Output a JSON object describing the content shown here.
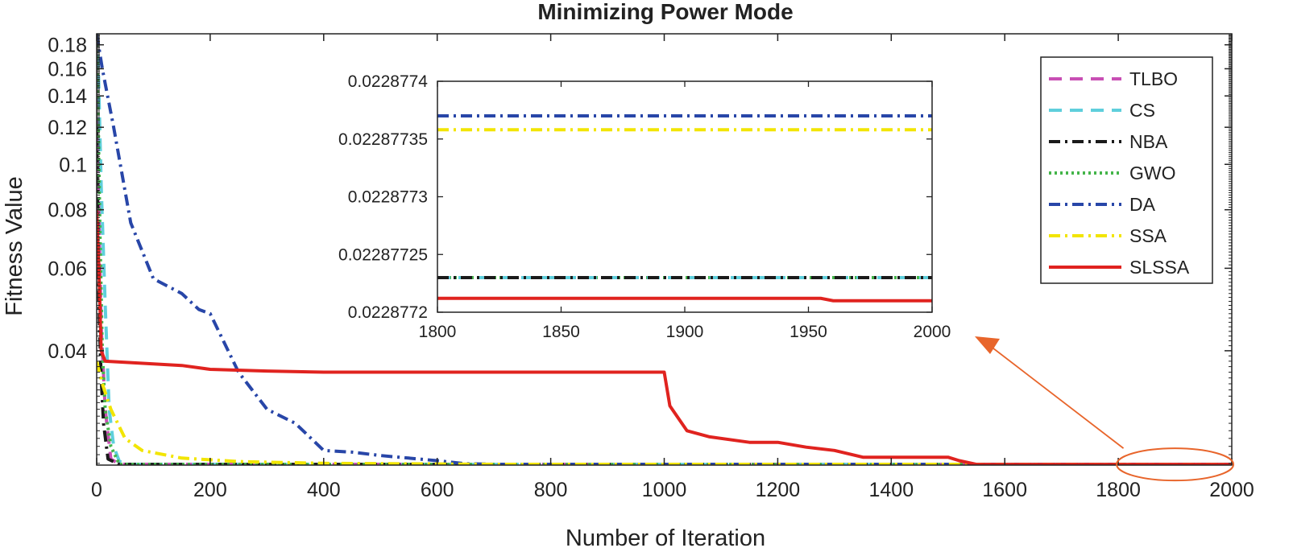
{
  "chart_data": [
    {
      "id": "main",
      "type": "line",
      "title": "Minimizing Power Mode",
      "xlabel": "Number of Iteration",
      "ylabel": "Fitness Value",
      "yscale": "log",
      "xlim": [
        0,
        2000
      ],
      "ylim": [
        0.0228,
        0.19
      ],
      "xticks": [
        "0",
        "200",
        "400",
        "600",
        "800",
        "1000",
        "1200",
        "1400",
        "1600",
        "1800",
        "2000"
      ],
      "yticks": [
        {
          "value": 0.04,
          "label": "0.04"
        },
        {
          "value": 0.06,
          "label": "0.06"
        },
        {
          "value": 0.08,
          "label": "0.08"
        },
        {
          "value": 0.1,
          "label": "0.1"
        },
        {
          "value": 0.12,
          "label": "0.12"
        },
        {
          "value": 0.14,
          "label": "0.14"
        },
        {
          "value": 0.16,
          "label": "0.16"
        },
        {
          "value": 0.18,
          "label": "0.18"
        }
      ],
      "legend_position": "top-right",
      "grid": false,
      "series": [
        {
          "name": "TLBO",
          "color": "#c84fb4",
          "dash": "dashed",
          "x": [
            0,
            3,
            8,
            15,
            25,
            40,
            2000
          ],
          "y": [
            0.19,
            0.09,
            0.045,
            0.03,
            0.0235,
            0.02289,
            0.0228772
          ]
        },
        {
          "name": "CS",
          "color": "#5fcfdc",
          "dash": "dashed",
          "x": [
            0,
            3,
            8,
            15,
            22,
            30,
            40,
            60,
            2000
          ],
          "y": [
            0.19,
            0.16,
            0.09,
            0.05,
            0.03,
            0.025,
            0.0232,
            0.02288,
            0.0228772
          ]
        },
        {
          "name": "NBA",
          "color": "#1a1a1a",
          "dash": "dashdot",
          "x": [
            0,
            2,
            5,
            8,
            12,
            20,
            40,
            2000
          ],
          "y": [
            0.12,
            0.07,
            0.045,
            0.035,
            0.028,
            0.0235,
            0.02288,
            0.0228772
          ]
        },
        {
          "name": "GWO",
          "color": "#44b54a",
          "dash": "dotted",
          "x": [
            0,
            3,
            6,
            10,
            15,
            25,
            40,
            2000
          ],
          "y": [
            0.19,
            0.12,
            0.07,
            0.04,
            0.03,
            0.025,
            0.02288,
            0.0228772
          ]
        },
        {
          "name": "DA",
          "color": "#2846a8",
          "dash": "dashdot",
          "x": [
            0,
            10,
            30,
            60,
            100,
            150,
            180,
            200,
            250,
            300,
            350,
            400,
            450,
            500,
            550,
            600,
            650,
            700,
            2000
          ],
          "y": [
            0.19,
            0.16,
            0.12,
            0.075,
            0.057,
            0.053,
            0.049,
            0.048,
            0.036,
            0.03,
            0.028,
            0.0245,
            0.0243,
            0.0239,
            0.0236,
            0.0233,
            0.02295,
            0.02289,
            0.0228774
          ]
        },
        {
          "name": "SSA",
          "color": "#f2e500",
          "dash": "dashdot",
          "x": [
            0,
            10,
            25,
            50,
            80,
            150,
            250,
            400,
            700,
            2000
          ],
          "y": [
            0.038,
            0.034,
            0.03,
            0.026,
            0.0245,
            0.0236,
            0.0232,
            0.023,
            0.02289,
            0.0228774
          ]
        },
        {
          "name": "SLSSA",
          "color": "#e0231f",
          "dash": "solid",
          "x": [
            0,
            4,
            8,
            15,
            50,
            150,
            200,
            300,
            400,
            600,
            800,
            1000,
            1010,
            1040,
            1080,
            1150,
            1200,
            1250,
            1300,
            1350,
            1400,
            1500,
            1520,
            1550,
            2000
          ],
          "y": [
            0.08,
            0.06,
            0.04,
            0.038,
            0.0378,
            0.0372,
            0.0365,
            0.0362,
            0.036,
            0.036,
            0.036,
            0.036,
            0.0305,
            0.027,
            0.0262,
            0.0255,
            0.0255,
            0.0249,
            0.0245,
            0.0237,
            0.0237,
            0.0237,
            0.0233,
            0.02288,
            0.0228772
          ]
        }
      ]
    },
    {
      "id": "inset",
      "type": "line",
      "xlim": [
        1800,
        2000
      ],
      "ylim": [
        0.0228772,
        0.0228774
      ],
      "xticks": [
        "1800",
        "1850",
        "1900",
        "1950",
        "2000"
      ],
      "yticks": [
        {
          "value": 0.0228774,
          "label": "0.0228774"
        },
        {
          "value": 0.02287735,
          "label": "0.02287735"
        },
        {
          "value": 0.0228773,
          "label": "0.0228773"
        },
        {
          "value": 0.02287725,
          "label": "0.02287725"
        },
        {
          "value": 0.0228772,
          "label": "0.0228772"
        }
      ],
      "series": [
        {
          "name": "TLBO",
          "x": [
            1800,
            2000
          ],
          "y": [
            0.02287723,
            0.02287723
          ]
        },
        {
          "name": "CS",
          "x": [
            1800,
            2000
          ],
          "y": [
            0.02287723,
            0.02287723
          ]
        },
        {
          "name": "NBA",
          "x": [
            1800,
            2000
          ],
          "y": [
            0.02287723,
            0.02287723
          ]
        },
        {
          "name": "GWO",
          "x": [
            1800,
            2000
          ],
          "y": [
            0.02287723,
            0.02287723
          ]
        },
        {
          "name": "DA",
          "x": [
            1800,
            2000
          ],
          "y": [
            0.02287737,
            0.02287737
          ]
        },
        {
          "name": "SSA",
          "x": [
            1800,
            2000
          ],
          "y": [
            0.022877358,
            0.022877358
          ]
        },
        {
          "name": "SLSSA",
          "x": [
            1800,
            1955,
            1960,
            2000
          ],
          "y": [
            0.022877212,
            0.022877212,
            0.02287721,
            0.02287721
          ]
        }
      ]
    }
  ]
}
